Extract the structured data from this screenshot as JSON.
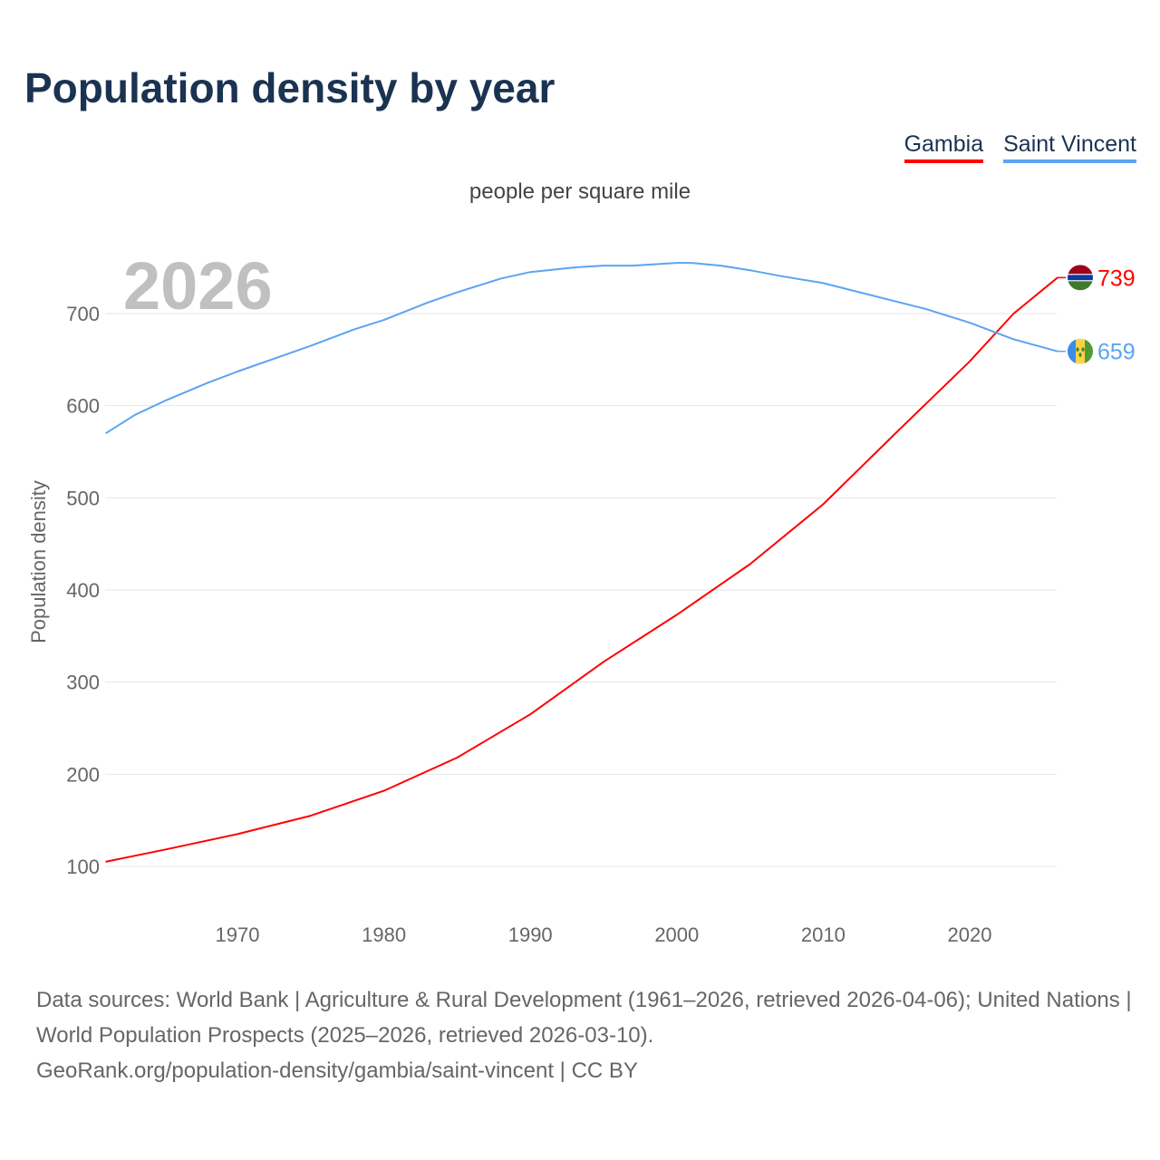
{
  "chart_data": {
    "type": "line",
    "title": "Population density by year",
    "subtitle": "people per square mile",
    "ylabel": "Population density",
    "xlabel": "",
    "year_overlay": "2026",
    "xlim": [
      1961,
      2026
    ],
    "ylim": [
      0,
      755
    ],
    "x_ticks": [
      1970,
      1980,
      1990,
      2000,
      2010,
      2020
    ],
    "y_ticks": [
      100,
      200,
      300,
      400,
      500,
      600,
      700
    ],
    "grid": true,
    "legend_position": "top-right",
    "series": [
      {
        "name": "Gambia",
        "color": "#ff0000",
        "end_label": "739",
        "x": [
          1961,
          1965,
          1970,
          1975,
          1980,
          1985,
          1990,
          1995,
          2000,
          2005,
          2010,
          2015,
          2020,
          2023,
          2026
        ],
        "y": [
          105,
          118,
          135,
          155,
          182,
          218,
          265,
          322,
          373,
          428,
          493,
          571,
          648,
          700,
          739
        ]
      },
      {
        "name": "Saint Vincent",
        "color": "#5aa5f0",
        "end_label": "659",
        "x": [
          1961,
          1963,
          1965,
          1968,
          1970,
          1975,
          1978,
          1980,
          1983,
          1985,
          1988,
          1990,
          1993,
          1995,
          1997,
          2000,
          2001,
          2003,
          2005,
          2007,
          2010,
          2015,
          2017,
          2020,
          2023,
          2026
        ],
        "y": [
          570,
          590,
          605,
          625,
          637,
          665,
          683,
          693,
          712,
          723,
          738,
          745,
          750,
          752,
          752,
          755,
          755,
          752,
          747,
          741,
          733,
          713,
          705,
          690,
          672,
          659
        ]
      }
    ]
  },
  "footer": {
    "line1": "Data sources: World Bank | Agriculture & Rural Development (1961–2026, retrieved 2026-04-06); United Nations | World Population Prospects (2025–2026, retrieved 2026-03-10).",
    "line2": "GeoRank.org/population-density/gambia/saint-vincent | CC BY"
  }
}
